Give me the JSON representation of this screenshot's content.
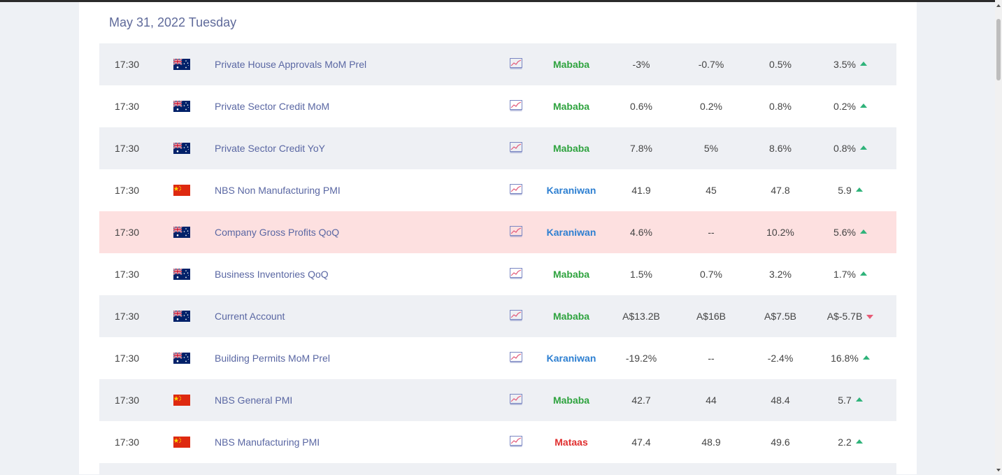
{
  "date_header": "May 31, 2022 Tuesday",
  "colors": {
    "impact_medium": "#2fa33f",
    "impact_low": "#2d7fd1",
    "impact_high": "#e03030",
    "up": "#2fb37a",
    "down": "#e75a75",
    "highlight_row": "#fde0e0"
  },
  "events": [
    {
      "time": "17:30",
      "flag": "australia-flag-icon",
      "name": "Private House Approvals MoM Prel",
      "impact": "Mababa",
      "impact_color": "#2fa33f",
      "actual": "-3%",
      "forecast": "-0.7%",
      "previous": "0.5%",
      "change": "3.5%",
      "trend": "up"
    },
    {
      "time": "17:30",
      "flag": "australia-flag-icon",
      "name": "Private Sector Credit MoM",
      "impact": "Mababa",
      "impact_color": "#2fa33f",
      "actual": "0.6%",
      "forecast": "0.2%",
      "previous": "0.8%",
      "change": "0.2%",
      "trend": "up"
    },
    {
      "time": "17:30",
      "flag": "australia-flag-icon",
      "name": "Private Sector Credit YoY",
      "impact": "Mababa",
      "impact_color": "#2fa33f",
      "actual": "7.8%",
      "forecast": "5%",
      "previous": "8.6%",
      "change": "0.8%",
      "trend": "up"
    },
    {
      "time": "17:30",
      "flag": "china-flag-icon",
      "name": "NBS Non Manufacturing PMI",
      "impact": "Karaniwan",
      "impact_color": "#2d7fd1",
      "actual": "41.9",
      "forecast": "45",
      "previous": "47.8",
      "change": "5.9",
      "trend": "up"
    },
    {
      "time": "17:30",
      "flag": "australia-flag-icon",
      "name": "Company Gross Profits QoQ",
      "impact": "Karaniwan",
      "impact_color": "#2d7fd1",
      "actual": "4.6%",
      "forecast": "--",
      "previous": "10.2%",
      "change": "5.6%",
      "trend": "up",
      "highlight": true
    },
    {
      "time": "17:30",
      "flag": "australia-flag-icon",
      "name": "Business Inventories QoQ",
      "impact": "Mababa",
      "impact_color": "#2fa33f",
      "actual": "1.5%",
      "forecast": "0.7%",
      "previous": "3.2%",
      "change": "1.7%",
      "trend": "up"
    },
    {
      "time": "17:30",
      "flag": "australia-flag-icon",
      "name": "Current Account",
      "impact": "Mababa",
      "impact_color": "#2fa33f",
      "actual": "A$13.2B",
      "forecast": "A$16B",
      "previous": "A$7.5B",
      "change": "A$-5.7B",
      "trend": "down"
    },
    {
      "time": "17:30",
      "flag": "australia-flag-icon",
      "name": "Building Permits MoM Prel",
      "impact": "Karaniwan",
      "impact_color": "#2d7fd1",
      "actual": "-19.2%",
      "forecast": "--",
      "previous": "-2.4%",
      "change": "16.8%",
      "trend": "up"
    },
    {
      "time": "17:30",
      "flag": "china-flag-icon",
      "name": "NBS General PMI",
      "impact": "Mababa",
      "impact_color": "#2fa33f",
      "actual": "42.7",
      "forecast": "44",
      "previous": "48.4",
      "change": "5.7",
      "trend": "up"
    },
    {
      "time": "17:30",
      "flag": "china-flag-icon",
      "name": "NBS Manufacturing PMI",
      "impact": "Mataas",
      "impact_color": "#e03030",
      "actual": "47.4",
      "forecast": "48.9",
      "previous": "49.6",
      "change": "2.2",
      "trend": "up"
    }
  ]
}
